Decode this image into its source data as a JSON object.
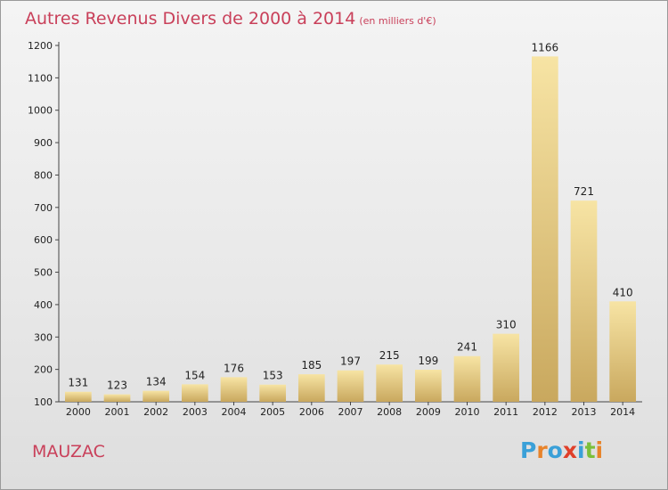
{
  "title": "Autres Revenus Divers de 2000 à 2014",
  "title_unit": "(en milliers d'€)",
  "place": "MAUZAC",
  "brand": {
    "letters": [
      "P",
      "r",
      "o",
      "x",
      "i",
      "t",
      "i"
    ],
    "colors": [
      "#3aa0d8",
      "#e8832a",
      "#3aa0d8",
      "#e0402a",
      "#3aa0d8",
      "#7bbf3a",
      "#e8832a"
    ]
  },
  "colors": {
    "title": "#c9405a",
    "bar_top": "#f7e4a4",
    "bar_bottom": "#c9a85e"
  },
  "chart_data": {
    "type": "bar",
    "categories": [
      "2000",
      "2001",
      "2002",
      "2003",
      "2004",
      "2005",
      "2006",
      "2007",
      "2008",
      "2009",
      "2010",
      "2011",
      "2012",
      "2013",
      "2014"
    ],
    "values": [
      131,
      123,
      134,
      154,
      176,
      153,
      185,
      197,
      215,
      199,
      241,
      310,
      1166,
      721,
      410
    ],
    "ylim": [
      100,
      1200
    ],
    "yticks": [
      100,
      200,
      300,
      400,
      500,
      600,
      700,
      800,
      900,
      1000,
      1100,
      1200
    ],
    "grid": false,
    "title": "Autres Revenus Divers de 2000 à 2014",
    "xlabel": "",
    "ylabel": ""
  }
}
